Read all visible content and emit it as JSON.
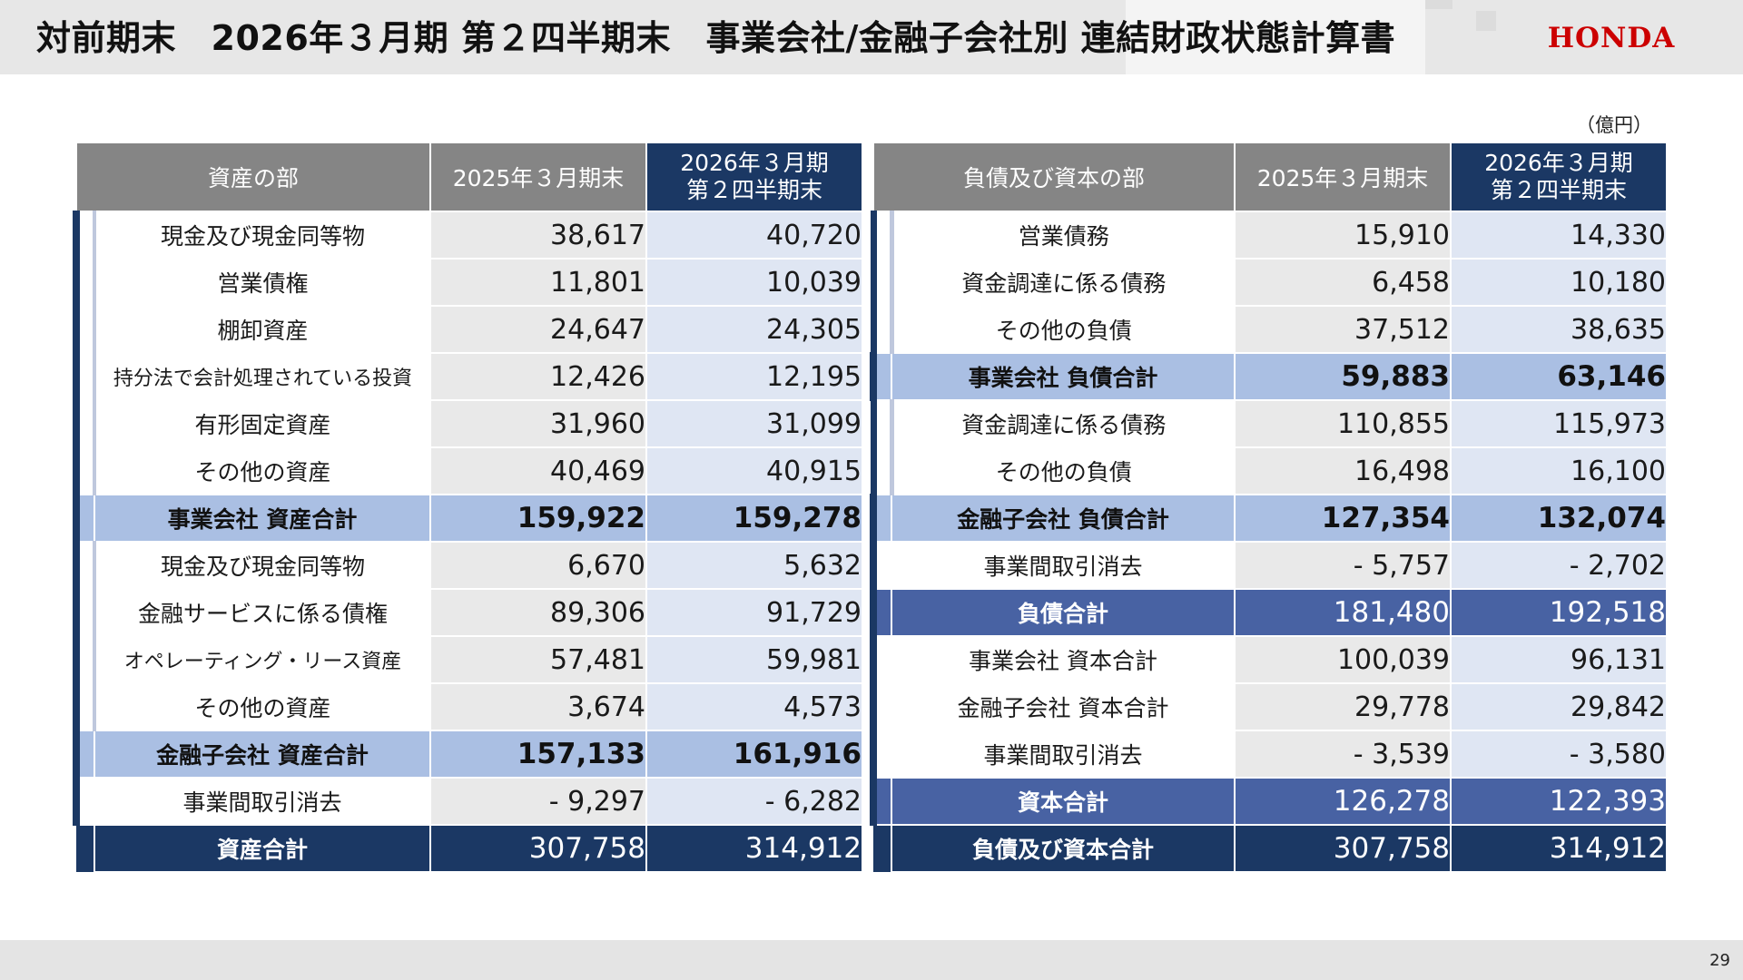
{
  "header": {
    "title": "対前期末　2026年３月期 第２四半期末　事業会社/金融子会社別 連結財政状態計算書",
    "logo": "HONDA"
  },
  "unit": "（億円）",
  "page_number": "29",
  "assets": {
    "header_label": "資産の部",
    "col_prev": "2025年３月期末",
    "col_cur_line1": "2026年３月期",
    "col_cur_line2": "第２四半期末",
    "rows": [
      {
        "label": "現金及び現金同等物",
        "prev": "38,617",
        "cur": "40,720"
      },
      {
        "label": "営業債権",
        "prev": "11,801",
        "cur": "10,039"
      },
      {
        "label": "棚卸資産",
        "prev": "24,647",
        "cur": "24,305"
      },
      {
        "label": "持分法で会計処理されている投資",
        "prev": "12,426",
        "cur": "12,195"
      },
      {
        "label": "有形固定資産",
        "prev": "31,960",
        "cur": "31,099"
      },
      {
        "label": "その他の資産",
        "prev": "40,469",
        "cur": "40,915"
      },
      {
        "label": "事業会社 資産合計",
        "prev": "159,922",
        "cur": "159,278"
      },
      {
        "label": "現金及び現金同等物",
        "prev": "6,670",
        "cur": "5,632"
      },
      {
        "label": "金融サービスに係る債権",
        "prev": "89,306",
        "cur": "91,729"
      },
      {
        "label": "オペレーティング・リース資産",
        "prev": "57,481",
        "cur": "59,981"
      },
      {
        "label": "その他の資産",
        "prev": "3,674",
        "cur": "4,573"
      },
      {
        "label": "金融子会社 資産合計",
        "prev": "157,133",
        "cur": "161,916"
      },
      {
        "label": "事業間取引消去",
        "prev": "- 9,297",
        "cur": "- 6,282"
      },
      {
        "label": "資産合計",
        "prev": "307,758",
        "cur": "314,912"
      }
    ]
  },
  "liabilities": {
    "header_label": "負債及び資本の部",
    "col_prev": "2025年３月期末",
    "col_cur_line1": "2026年３月期",
    "col_cur_line2": "第２四半期末",
    "rows": [
      {
        "label": "営業債務",
        "prev": "15,910",
        "cur": "14,330"
      },
      {
        "label": "資金調達に係る債務",
        "prev": "6,458",
        "cur": "10,180"
      },
      {
        "label": "その他の負債",
        "prev": "37,512",
        "cur": "38,635"
      },
      {
        "label": "事業会社 負債合計",
        "prev": "59,883",
        "cur": "63,146"
      },
      {
        "label": "資金調達に係る債務",
        "prev": "110,855",
        "cur": "115,973"
      },
      {
        "label": "その他の負債",
        "prev": "16,498",
        "cur": "16,100"
      },
      {
        "label": "金融子会社 負債合計",
        "prev": "127,354",
        "cur": "132,074"
      },
      {
        "label": "事業間取引消去",
        "prev": "- 5,757",
        "cur": "- 2,702"
      },
      {
        "label": "負債合計",
        "prev": "181,480",
        "cur": "192,518"
      },
      {
        "label": "事業会社 資本合計",
        "prev": "100,039",
        "cur": "96,131"
      },
      {
        "label": "金融子会社 資本合計",
        "prev": "29,778",
        "cur": "29,842"
      },
      {
        "label": "事業間取引消去",
        "prev": "- 3,539",
        "cur": "- 3,580"
      },
      {
        "label": "資本合計",
        "prev": "126,278",
        "cur": "122,393"
      },
      {
        "label": "負債及び資本合計",
        "prev": "307,758",
        "cur": "314,912"
      }
    ]
  },
  "colors": {
    "header_gray": "#858585",
    "navy": "#1b3864",
    "mid_blue": "#4862a3",
    "light_blue": "#aabfe3",
    "pale_blue": "#dfe6f3",
    "light_gray": "#e9e9e9",
    "logo_red": "#cc0000"
  }
}
